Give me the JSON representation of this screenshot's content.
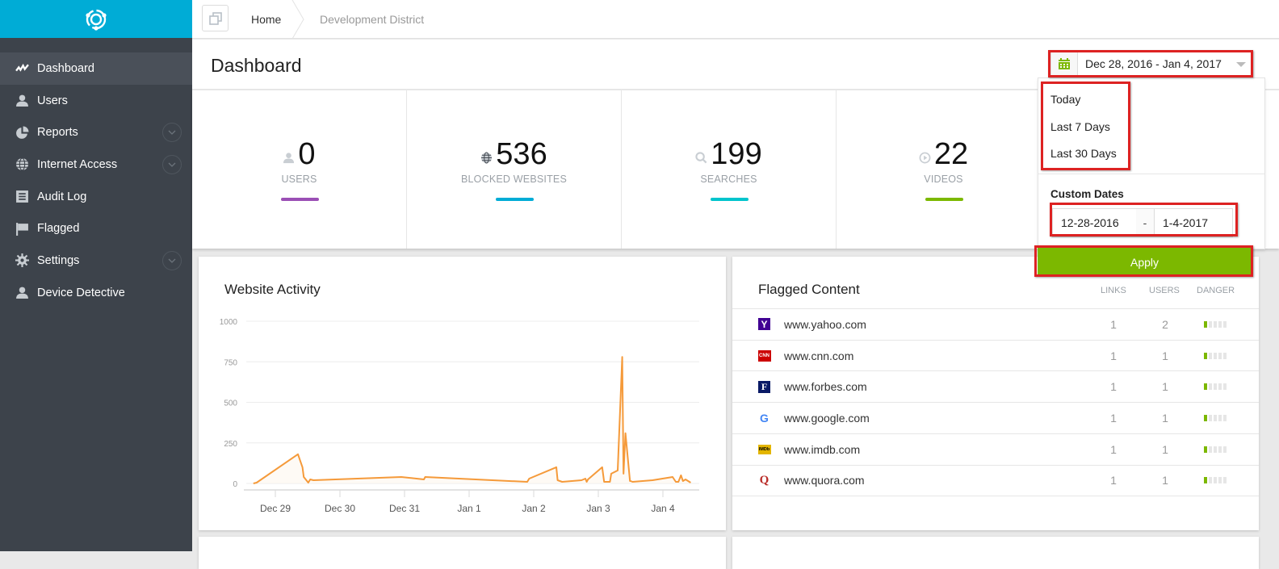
{
  "sidebar": {
    "logo": "app-logo",
    "items": [
      {
        "label": "Dashboard",
        "icon": "activity-icon",
        "active": true
      },
      {
        "label": "Users",
        "icon": "user-icon"
      },
      {
        "label": "Reports",
        "icon": "pie-chart-icon",
        "expandable": true
      },
      {
        "label": "Internet Access",
        "icon": "globe-icon",
        "expandable": true
      },
      {
        "label": "Audit Log",
        "icon": "list-icon"
      },
      {
        "label": "Flagged",
        "icon": "flag-icon"
      },
      {
        "label": "Settings",
        "icon": "gear-icon",
        "expandable": true
      },
      {
        "label": "Device Detective",
        "icon": "user-icon"
      }
    ]
  },
  "breadcrumb": {
    "home": "Home",
    "current": "Development District"
  },
  "page": {
    "title": "Dashboard"
  },
  "date_range": {
    "value": "Dec 28, 2016 - Jan 4, 2017",
    "presets": [
      "Today",
      "Last 7 Days",
      "Last 30 Days"
    ],
    "custom_label": "Custom Dates",
    "start": "12-28-2016",
    "separator": "-",
    "end": "1-4-2017",
    "apply_label": "Apply",
    "accent": "#7cb800"
  },
  "stats": [
    {
      "value": "0",
      "label": "USERS",
      "icon": "user-icon",
      "color": "#9b4fb5"
    },
    {
      "value": "536",
      "label": "BLOCKED WEBSITES",
      "icon": "globe-icon",
      "color": "#00acd6"
    },
    {
      "value": "199",
      "label": "SEARCHES",
      "icon": "search-icon",
      "color": "#00c4cc"
    },
    {
      "value": "22",
      "label": "VIDEOS",
      "icon": "play-icon",
      "color": "#7cb800"
    }
  ],
  "website_activity": {
    "title": "Website Activity"
  },
  "flagged_content": {
    "title": "Flagged Content",
    "columns": [
      "LINKS",
      "USERS",
      "DANGER"
    ],
    "rows": [
      {
        "site": "www.yahoo.com",
        "icon": "yahoo-icon",
        "links": "1",
        "users": "2",
        "danger": 1
      },
      {
        "site": "www.cnn.com",
        "icon": "cnn-icon",
        "links": "1",
        "users": "1",
        "danger": 1
      },
      {
        "site": "www.forbes.com",
        "icon": "forbes-icon",
        "links": "1",
        "users": "1",
        "danger": 1
      },
      {
        "site": "www.google.com",
        "icon": "google-icon",
        "links": "1",
        "users": "1",
        "danger": 1
      },
      {
        "site": "www.imdb.com",
        "icon": "imdb-icon",
        "links": "1",
        "users": "1",
        "danger": 1
      },
      {
        "site": "www.quora.com",
        "icon": "quora-icon",
        "links": "1",
        "users": "1",
        "danger": 1
      }
    ]
  },
  "chart_data": {
    "type": "line",
    "title": "Website Activity",
    "xlabel": "",
    "ylabel": "",
    "ylim": [
      0,
      1000
    ],
    "yticks": [
      0,
      250,
      500,
      750,
      1000
    ],
    "xticks": [
      "Dec 29",
      "Dec 30",
      "Dec 31",
      "Jan 1",
      "Jan 2",
      "Jan 3",
      "Jan 4"
    ],
    "grid": true,
    "color": "#f59a3a",
    "x_days_from_dec29": [
      -0.34,
      -0.29,
      0.35,
      0.42,
      0.44,
      0.51,
      0.54,
      0.59,
      1.95,
      2.3,
      2.32,
      3.9,
      3.93,
      4.35,
      4.37,
      4.44,
      4.74,
      4.8,
      4.82,
      4.84,
      5.06,
      5.09,
      5.18,
      5.2,
      5.3,
      5.37,
      5.39,
      5.42,
      5.49,
      5.5,
      5.53,
      5.84,
      6.15,
      6.2,
      6.24,
      6.28,
      6.31,
      6.35,
      6.43
    ],
    "values": [
      0,
      5,
      180,
      100,
      40,
      5,
      25,
      20,
      40,
      25,
      40,
      10,
      30,
      100,
      20,
      10,
      20,
      30,
      10,
      25,
      100,
      10,
      10,
      60,
      80,
      780,
      60,
      310,
      15,
      15,
      10,
      20,
      40,
      10,
      10,
      50,
      15,
      25,
      5
    ]
  }
}
